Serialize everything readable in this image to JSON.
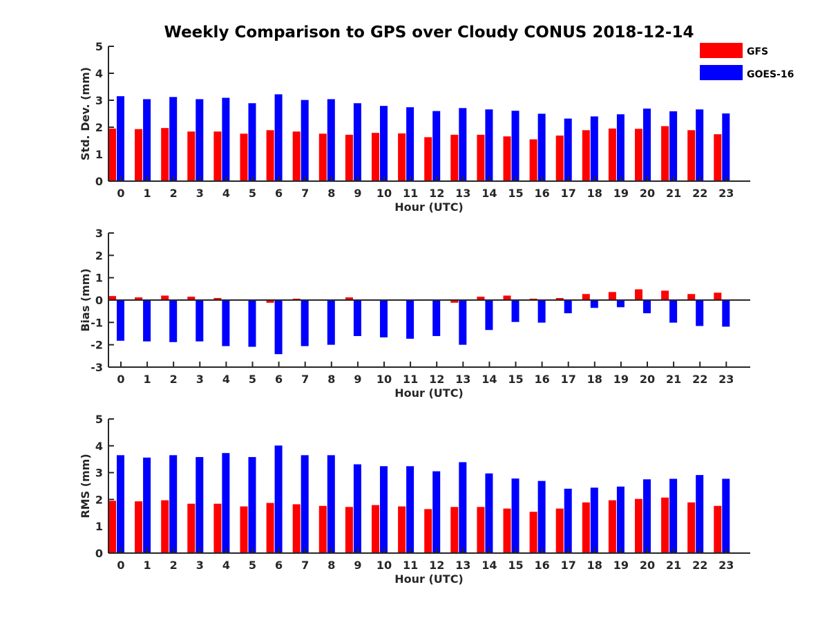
{
  "figure": {
    "title": "Weekly Comparison to GPS over Cloudy CONUS 2018-12-14"
  },
  "legend": {
    "placement": "top-right",
    "items": [
      {
        "name": "GFS",
        "color": "#ff0000"
      },
      {
        "name": "GOES-16",
        "color": "#0000ff"
      }
    ]
  },
  "chart_data": [
    {
      "type": "bar",
      "title": "Weekly Comparison to GPS over Cloudy CONUS 2018-12-14",
      "xlabel": "Hour (UTC)",
      "ylabel": "Std. Dev. (mm)",
      "ylim": [
        0,
        5
      ],
      "yticks": [
        0,
        1,
        2,
        3,
        4,
        5
      ],
      "categories": [
        "0",
        "1",
        "2",
        "3",
        "4",
        "5",
        "6",
        "7",
        "8",
        "9",
        "10",
        "11",
        "12",
        "13",
        "14",
        "15",
        "16",
        "17",
        "18",
        "19",
        "20",
        "21",
        "22",
        "23"
      ],
      "series": [
        {
          "name": "GFS",
          "color": "#ff0000",
          "values": [
            1.95,
            1.93,
            1.97,
            1.84,
            1.84,
            1.76,
            1.89,
            1.84,
            1.76,
            1.72,
            1.79,
            1.77,
            1.63,
            1.72,
            1.72,
            1.66,
            1.55,
            1.69,
            1.89,
            1.95,
            1.94,
            2.04,
            1.89,
            1.74
          ]
        },
        {
          "name": "GOES-16",
          "color": "#0000ff",
          "values": [
            3.15,
            3.04,
            3.12,
            3.04,
            3.09,
            2.89,
            3.22,
            3.01,
            3.04,
            2.89,
            2.79,
            2.74,
            2.6,
            2.71,
            2.66,
            2.61,
            2.5,
            2.32,
            2.4,
            2.48,
            2.69,
            2.59,
            2.66,
            2.51
          ]
        }
      ]
    },
    {
      "type": "bar",
      "xlabel": "Hour (UTC)",
      "ylabel": "Bias (mm)",
      "ylim": [
        -3,
        3
      ],
      "yticks": [
        -3,
        -2,
        -1,
        0,
        1,
        2,
        3
      ],
      "categories": [
        "0",
        "1",
        "2",
        "3",
        "4",
        "5",
        "6",
        "7",
        "8",
        "9",
        "10",
        "11",
        "12",
        "13",
        "14",
        "15",
        "16",
        "17",
        "18",
        "19",
        "20",
        "21",
        "22",
        "23"
      ],
      "series": [
        {
          "name": "GFS",
          "color": "#ff0000",
          "values": [
            0.18,
            0.12,
            0.2,
            0.15,
            0.09,
            0.03,
            -0.12,
            0.06,
            0.03,
            0.12,
            0.03,
            0.03,
            0.03,
            -0.12,
            0.15,
            0.2,
            0.06,
            0.09,
            0.27,
            0.36,
            0.48,
            0.42,
            0.27,
            0.33
          ]
        },
        {
          "name": "GOES-16",
          "color": "#0000ff",
          "values": [
            -1.82,
            -1.85,
            -1.88,
            -1.85,
            -2.06,
            -2.09,
            -2.42,
            -2.06,
            -2.0,
            -1.61,
            -1.67,
            -1.73,
            -1.61,
            -2.0,
            -1.34,
            -0.98,
            -1.01,
            -0.59,
            -0.35,
            -0.32,
            -0.59,
            -1.01,
            -1.16,
            -1.19
          ]
        }
      ]
    },
    {
      "type": "bar",
      "xlabel": "Hour (UTC)",
      "ylabel": "RMS (mm)",
      "ylim": [
        0,
        5
      ],
      "yticks": [
        0,
        1,
        2,
        3,
        4,
        5
      ],
      "categories": [
        "0",
        "1",
        "2",
        "3",
        "4",
        "5",
        "6",
        "7",
        "8",
        "9",
        "10",
        "11",
        "12",
        "13",
        "14",
        "15",
        "16",
        "17",
        "18",
        "19",
        "20",
        "21",
        "22",
        "23"
      ],
      "series": [
        {
          "name": "GFS",
          "color": "#ff0000",
          "values": [
            1.95,
            1.93,
            1.97,
            1.84,
            1.84,
            1.74,
            1.87,
            1.82,
            1.76,
            1.72,
            1.79,
            1.74,
            1.64,
            1.72,
            1.72,
            1.66,
            1.54,
            1.66,
            1.89,
            1.97,
            2.02,
            2.07,
            1.89,
            1.76
          ]
        },
        {
          "name": "GOES-16",
          "color": "#0000ff",
          "values": [
            3.65,
            3.56,
            3.65,
            3.58,
            3.73,
            3.58,
            4.01,
            3.65,
            3.65,
            3.31,
            3.24,
            3.24,
            3.05,
            3.39,
            2.97,
            2.78,
            2.69,
            2.4,
            2.44,
            2.48,
            2.75,
            2.77,
            2.91,
            2.77
          ]
        }
      ]
    }
  ]
}
